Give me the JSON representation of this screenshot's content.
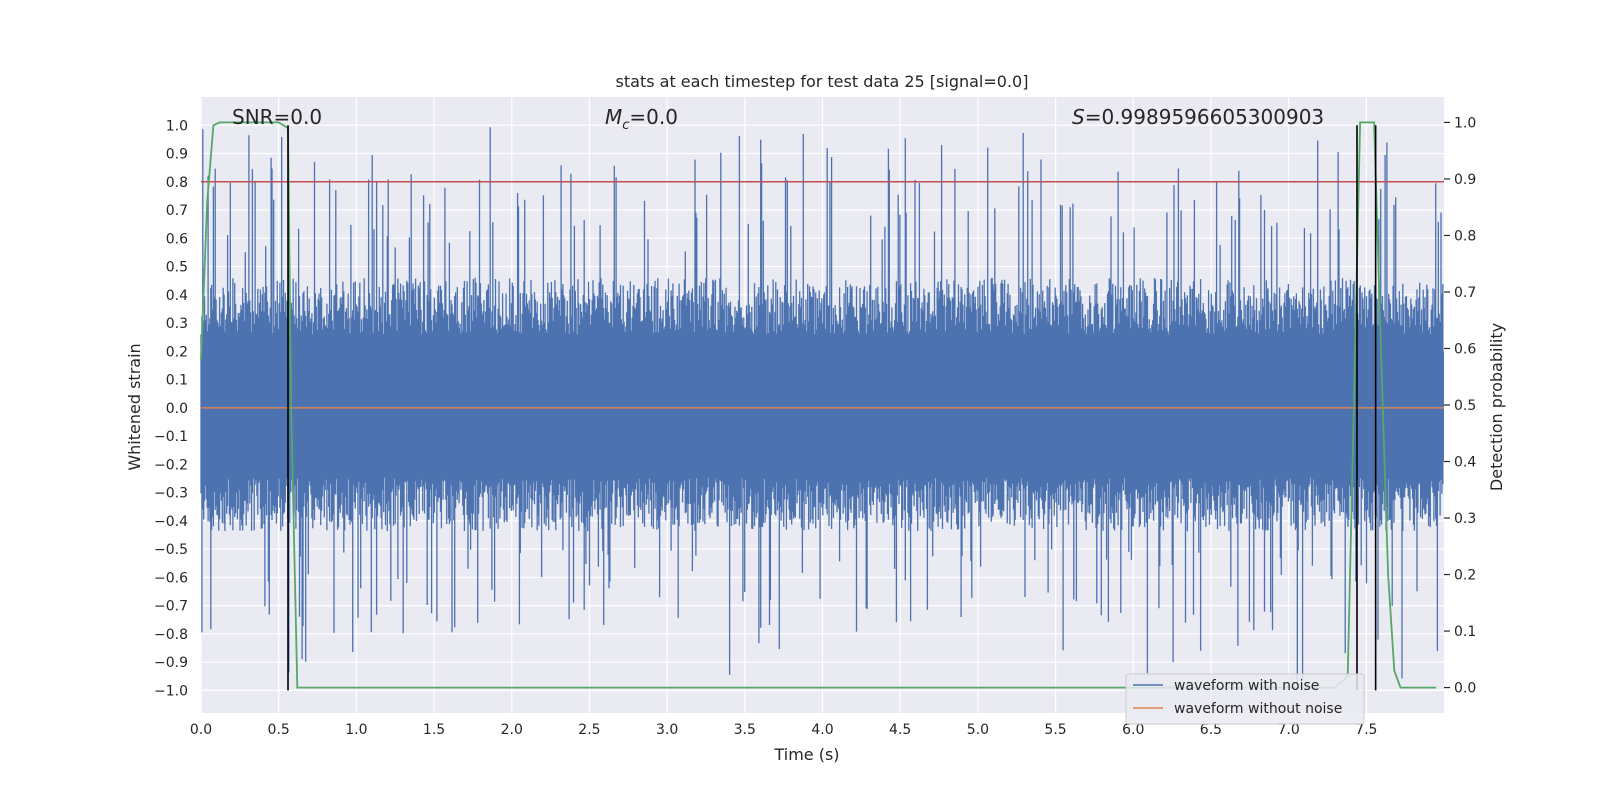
{
  "chart_data": {
    "type": "line",
    "title": "stats at each timestep for test data 25 [signal=0.0]",
    "xlabel": "Time (s)",
    "ylabel_left": "Whitened strain",
    "ylabel_right": "Detection probability",
    "xlim": [
      0.0,
      8.0
    ],
    "ylim_left": [
      -1.08,
      1.1
    ],
    "ylim_right": [
      -0.045,
      1.045
    ],
    "x_ticks": [
      0.0,
      0.5,
      1.0,
      1.5,
      2.0,
      2.5,
      3.0,
      3.5,
      4.0,
      4.5,
      5.0,
      5.5,
      6.0,
      6.5,
      7.0,
      7.5
    ],
    "x_tick_labels": [
      "0.0",
      "0.5",
      "1.0",
      "1.5",
      "2.0",
      "2.5",
      "3.0",
      "3.5",
      "4.0",
      "4.5",
      "5.0",
      "5.5",
      "6.0",
      "6.5",
      "7.0",
      "7.5"
    ],
    "y_left_ticks": [
      -1.0,
      -0.9,
      -0.8,
      -0.7,
      -0.6,
      -0.5,
      -0.4,
      -0.3,
      -0.2,
      -0.1,
      0.0,
      0.1,
      0.2,
      0.3,
      0.4,
      0.5,
      0.6,
      0.7,
      0.8,
      0.9,
      1.0
    ],
    "y_left_tick_labels": [
      "−1.0",
      "−0.9",
      "−0.8",
      "−0.7",
      "−0.6",
      "−0.5",
      "−0.4",
      "−0.3",
      "−0.2",
      "−0.1",
      "0.0",
      "0.1",
      "0.2",
      "0.3",
      "0.4",
      "0.5",
      "0.6",
      "0.7",
      "0.8",
      "0.9",
      "1.0"
    ],
    "y_right_ticks": [
      0.0,
      0.1,
      0.2,
      0.3,
      0.4,
      0.5,
      0.6,
      0.7,
      0.8,
      0.9,
      1.0
    ],
    "y_right_tick_labels": [
      "0.0",
      "0.1",
      "0.2",
      "0.3",
      "0.4",
      "0.5",
      "0.6",
      "0.7",
      "0.8",
      "0.9",
      "1.0"
    ],
    "annotations": {
      "snr": "SNR=0.0",
      "mc_symbol": "M",
      "mc_sub": "c",
      "mc_value": "=0.0",
      "s_symbol": "S",
      "s_value": "=0.9989596605300903"
    },
    "threshold": {
      "value": 0.8,
      "axis": "left",
      "color": "#c44e52"
    },
    "noise_envelope": {
      "series_name": "waveform with noise",
      "color": "#4c72b0",
      "band": [
        -0.38,
        0.4
      ],
      "peaks_max": 1.0,
      "peaks_min": -0.98
    },
    "waveform_without_noise": {
      "name": "waveform without noise",
      "color": "#dd8452",
      "value": 0.0
    },
    "detection_probability": {
      "color": "#55a868",
      "x": [
        0.0,
        0.04,
        0.08,
        0.12,
        0.5,
        0.56,
        0.58,
        0.62,
        7.3,
        7.38,
        7.42,
        7.46,
        7.5,
        7.55,
        7.6,
        7.64,
        7.68,
        7.72,
        7.95
      ],
      "y": [
        0.58,
        0.86,
        0.995,
        1.0,
        1.0,
        0.99,
        0.5,
        0.0,
        0.0,
        0.02,
        0.5,
        1.0,
        1.0,
        1.0,
        0.55,
        0.2,
        0.03,
        0.0,
        0.0
      ]
    },
    "vertical_markers": {
      "color": "#000000",
      "x": [
        0.56,
        7.44,
        7.56
      ]
    },
    "legend": {
      "placement": "lower-right",
      "entries": [
        {
          "label": "waveform with noise",
          "color": "#4c72b0"
        },
        {
          "label": "waveform without noise",
          "color": "#dd8452"
        }
      ]
    },
    "colors": {
      "plot_bg": "#eaeaf2",
      "grid": "#ffffff",
      "text": "#262626"
    }
  }
}
